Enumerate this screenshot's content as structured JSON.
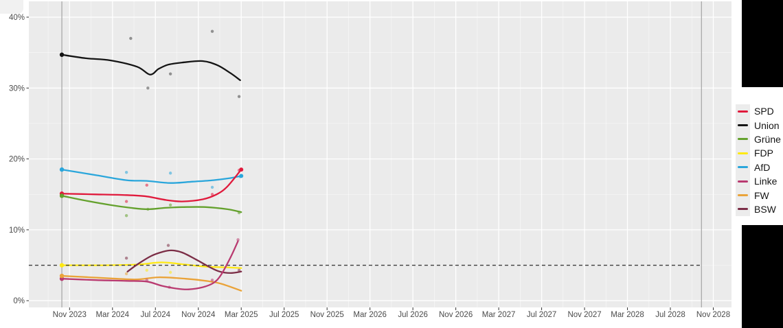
{
  "chart_data": {
    "type": "line",
    "title": "",
    "panel_background": "#ebebeb",
    "gridline_color": "#ffffff",
    "axis_text_color": "#4a4a4a",
    "legend_position": "right",
    "xlim_months": [
      -3.8,
      61.7
    ],
    "ylim": [
      -1.0,
      42.2
    ],
    "x_ticks": [
      {
        "label": "Nov 2023",
        "month": 0
      },
      {
        "label": "Mar 2024",
        "month": 4
      },
      {
        "label": "Jul 2024",
        "month": 8
      },
      {
        "label": "Nov 2024",
        "month": 12
      },
      {
        "label": "Mar 2025",
        "month": 16
      },
      {
        "label": "Jul 2025",
        "month": 20
      },
      {
        "label": "Nov 2025",
        "month": 24
      },
      {
        "label": "Mar 2026",
        "month": 28
      },
      {
        "label": "Jul 2026",
        "month": 32
      },
      {
        "label": "Nov 2026",
        "month": 36
      },
      {
        "label": "Mar 2027",
        "month": 40
      },
      {
        "label": "Jul 2027",
        "month": 44
      },
      {
        "label": "Nov 2027",
        "month": 48
      },
      {
        "label": "Mar 2028",
        "month": 52
      },
      {
        "label": "Jul 2028",
        "month": 56
      },
      {
        "label": "Nov 2028",
        "month": 60
      }
    ],
    "y_ticks": [
      {
        "label": "0%",
        "value": 0
      },
      {
        "label": "10%",
        "value": 10
      },
      {
        "label": "20%",
        "value": 20
      },
      {
        "label": "30%",
        "value": 30
      },
      {
        "label": "40%",
        "value": 40
      }
    ],
    "x_minor_months": [
      -2,
      2,
      6,
      10,
      14,
      18,
      22,
      26,
      30,
      34,
      38,
      42,
      46,
      50,
      54,
      58
    ],
    "y_minor_values": [
      5,
      15,
      25,
      35
    ],
    "threshold_line": {
      "value": 5,
      "style": "dashed",
      "color": "#3c3c3c",
      "from_month": -3.8,
      "to_month": 58.9
    },
    "election_marker_months": [
      -0.72,
      58.9
    ],
    "series": [
      {
        "name": "SPD",
        "color": "#e01a3c",
        "election_result_pct": 15.1,
        "end_dot": [
          16,
          18.5
        ],
        "trend": [
          [
            -0.72,
            15.1
          ],
          [
            2.5,
            15.0
          ],
          [
            5.3,
            14.9
          ],
          [
            7.2,
            14.7
          ],
          [
            9,
            14.2
          ],
          [
            10.5,
            14.0
          ],
          [
            12.4,
            14.3
          ],
          [
            13.7,
            15.0
          ],
          [
            14.7,
            16.1
          ],
          [
            16,
            18.5
          ]
        ],
        "polls": [
          [
            5.3,
            14.0
          ],
          [
            7.2,
            16.3
          ],
          [
            13.3,
            15.0
          ],
          [
            15.8,
            18.4
          ]
        ]
      },
      {
        "name": "Union",
        "color": "#141414",
        "election_result_pct": 34.7,
        "trend": [
          [
            -0.72,
            34.7
          ],
          [
            1.5,
            34.2
          ],
          [
            3.8,
            33.9
          ],
          [
            6.3,
            33.0
          ],
          [
            7.5,
            31.9
          ],
          [
            8.3,
            32.7
          ],
          [
            9.2,
            33.3
          ],
          [
            10.5,
            33.6
          ],
          [
            12.4,
            33.8
          ],
          [
            13.8,
            33.2
          ],
          [
            15,
            32.1
          ],
          [
            15.9,
            31.1
          ]
        ],
        "polls": [
          [
            5.7,
            37.0
          ],
          [
            7.3,
            30.0
          ],
          [
            9.4,
            32.0
          ],
          [
            13.3,
            38.0
          ],
          [
            15.8,
            28.8
          ]
        ]
      },
      {
        "name": "Grüne",
        "color": "#64a12d",
        "election_result_pct": 14.8,
        "trend": [
          [
            -0.72,
            14.8
          ],
          [
            1.2,
            14.2
          ],
          [
            3.8,
            13.5
          ],
          [
            5.7,
            13.1
          ],
          [
            7.3,
            12.9
          ],
          [
            8.9,
            13.1
          ],
          [
            10.5,
            13.2
          ],
          [
            12.7,
            13.2
          ],
          [
            14.7,
            12.9
          ],
          [
            16,
            12.5
          ]
        ],
        "polls": [
          [
            5.3,
            12.0
          ],
          [
            7.3,
            12.9
          ],
          [
            9.4,
            13.5
          ],
          [
            15.8,
            12.4
          ]
        ]
      },
      {
        "name": "FDP",
        "color": "#ffe912",
        "election_result_pct": 5.0,
        "trend": [
          [
            -0.72,
            5.0
          ],
          [
            3,
            5.0
          ],
          [
            6.3,
            5.1
          ],
          [
            8.6,
            5.4
          ],
          [
            10.8,
            5.1
          ],
          [
            12.7,
            4.8
          ],
          [
            14.7,
            4.7
          ],
          [
            16,
            4.6
          ]
        ],
        "polls": [
          [
            7.2,
            4.3
          ],
          [
            9.4,
            4.0
          ]
        ]
      },
      {
        "name": "AfD",
        "color": "#2aa6db",
        "election_result_pct": 18.5,
        "end_dot": [
          16,
          17.6
        ],
        "trend": [
          [
            -0.72,
            18.5
          ],
          [
            2.5,
            17.7
          ],
          [
            5.3,
            17.0
          ],
          [
            7.2,
            16.9
          ],
          [
            9.4,
            16.6
          ],
          [
            11.5,
            16.8
          ],
          [
            13.4,
            17.0
          ],
          [
            15,
            17.3
          ],
          [
            16,
            17.6
          ]
        ],
        "polls": [
          [
            5.3,
            18.1
          ],
          [
            9.4,
            18.0
          ],
          [
            13.3,
            16.0
          ],
          [
            15.9,
            17.5
          ]
        ]
      },
      {
        "name": "Linke",
        "color": "#b93a70",
        "election_result_pct": 3.1,
        "trend": [
          [
            -0.72,
            3.1
          ],
          [
            2.5,
            2.9
          ],
          [
            5.3,
            2.8
          ],
          [
            7.2,
            2.7
          ],
          [
            8.6,
            2.1
          ],
          [
            10,
            1.7
          ],
          [
            11.1,
            1.6
          ],
          [
            12.4,
            1.9
          ],
          [
            13.4,
            2.5
          ],
          [
            14.1,
            3.6
          ],
          [
            15,
            6.1
          ],
          [
            15.7,
            8.4
          ]
        ],
        "polls": [
          [
            7.2,
            2.9
          ],
          [
            9.3,
            1.9
          ],
          [
            13.3,
            2.9
          ],
          [
            15.7,
            8.6
          ]
        ]
      },
      {
        "name": "FW",
        "color": "#eaa339",
        "election_result_pct": 3.5,
        "trend": [
          [
            -0.72,
            3.5
          ],
          [
            1.9,
            3.3
          ],
          [
            4.4,
            3.1
          ],
          [
            6.3,
            3.0
          ],
          [
            8.3,
            3.3
          ],
          [
            10.8,
            3.1
          ],
          [
            12.7,
            2.8
          ],
          [
            14.1,
            2.4
          ],
          [
            16,
            1.4
          ]
        ],
        "polls": [
          [
            5.3,
            3.8
          ]
        ]
      },
      {
        "name": "BSW",
        "color": "#7b2d46",
        "trend": [
          [
            5.4,
            4.1
          ],
          [
            6.3,
            5.1
          ],
          [
            7.6,
            6.3
          ],
          [
            8.7,
            6.9
          ],
          [
            9.5,
            7.1
          ],
          [
            10.5,
            6.8
          ],
          [
            11.8,
            5.8
          ],
          [
            13.1,
            4.7
          ],
          [
            14,
            4.1
          ],
          [
            15,
            3.9
          ],
          [
            16,
            4.1
          ]
        ],
        "polls": [
          [
            5.3,
            6.0
          ],
          [
            9.2,
            7.8
          ],
          [
            15.8,
            4.3
          ]
        ]
      }
    ]
  },
  "decor": {
    "dark_backdrop_color": "#000000",
    "corner_patch_color": "#f1f1f1"
  }
}
